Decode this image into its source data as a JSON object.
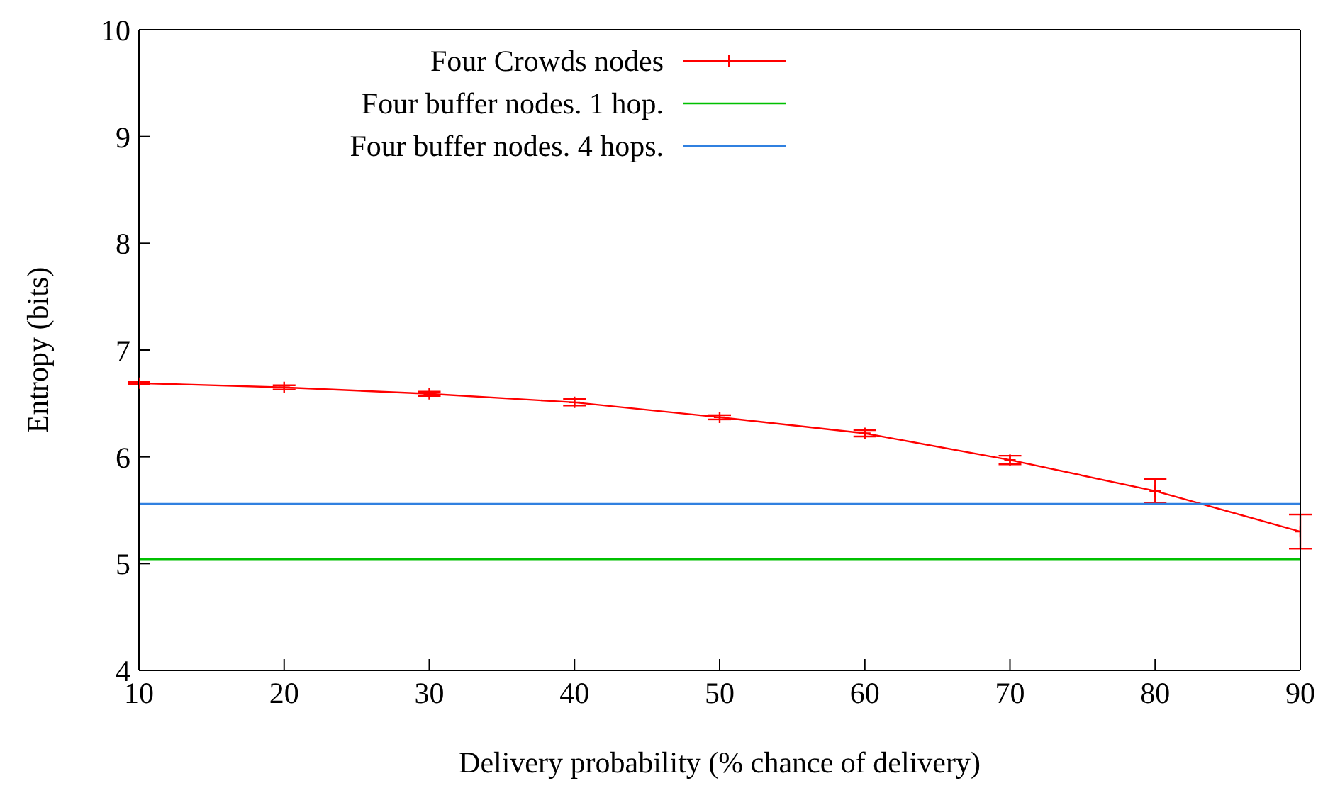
{
  "chart_data": {
    "type": "line",
    "xlabel": "Delivery probability (% chance of delivery)",
    "ylabel": "Entropy (bits)",
    "xlim": [
      10,
      90
    ],
    "xticks": [
      10,
      20,
      30,
      40,
      50,
      60,
      70,
      80,
      90
    ],
    "ylim": [
      4,
      10
    ],
    "yticks": [
      4,
      5,
      6,
      7,
      8,
      9,
      10
    ],
    "legend": "top left",
    "marker": "cross",
    "line_style": "solid",
    "series": [
      {
        "name": "Four Crowds nodes",
        "color": "#ff0000",
        "x": [
          10,
          20,
          30,
          40,
          50,
          60,
          70,
          80,
          90
        ],
        "values": [
          6.69,
          6.65,
          6.59,
          6.51,
          6.37,
          6.22,
          5.97,
          5.68,
          5.3
        ],
        "errors": [
          0.01,
          0.02,
          0.02,
          0.03,
          0.02,
          0.03,
          0.04,
          0.11,
          0.16
        ]
      },
      {
        "name": "Four buffer nodes. 1 hop.",
        "color": "#00c000",
        "x": [
          10,
          90
        ],
        "values": [
          5.04,
          5.04
        ],
        "marker": "none"
      },
      {
        "name": "Four buffer nodes. 4 hops.",
        "color": "#3080e0",
        "x": [
          10,
          90
        ],
        "values": [
          5.56,
          5.56
        ],
        "marker": "none"
      }
    ]
  }
}
